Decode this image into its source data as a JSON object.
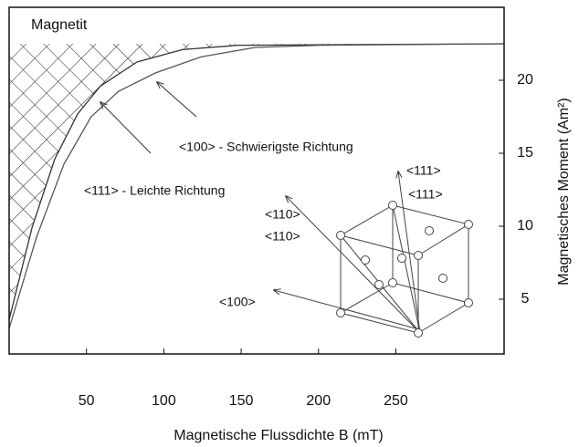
{
  "chart_data": {
    "type": "line",
    "title": "Magnetit",
    "xlabel": "Magnetische Flussdichte B (mT)",
    "ylabel": "Magnetisches Moment (Am²)",
    "xlim": [
      0,
      320
    ],
    "ylim": [
      1.25,
      25
    ],
    "xticks": [
      50,
      100,
      150,
      200,
      250
    ],
    "yticks": [
      5,
      10,
      15,
      20
    ],
    "series": [
      {
        "name": "<111> - Leichte Richtung",
        "color": "#333333",
        "x": [
          0,
          14.8,
          29.5,
          44.3,
          59,
          82.6,
          112,
          148,
          320
        ],
        "values": [
          3.6,
          9.9,
          14.6,
          17.7,
          19.6,
          21.25,
          22.1,
          22.4,
          22.5
        ]
      },
      {
        "name": "<100> - Schwierigste Richtung",
        "color": "#555555",
        "x": [
          0,
          17.7,
          35.4,
          53,
          70.8,
          94.5,
          124,
          159,
          201,
          320
        ],
        "values": [
          3.0,
          9.25,
          14.25,
          17.5,
          19.25,
          20.5,
          21.6,
          22.25,
          22.4,
          22.5
        ]
      }
    ],
    "hatch": true,
    "cube_labels": [
      "<111>",
      "<111>",
      "<110>",
      "<110>",
      "<100>"
    ]
  }
}
